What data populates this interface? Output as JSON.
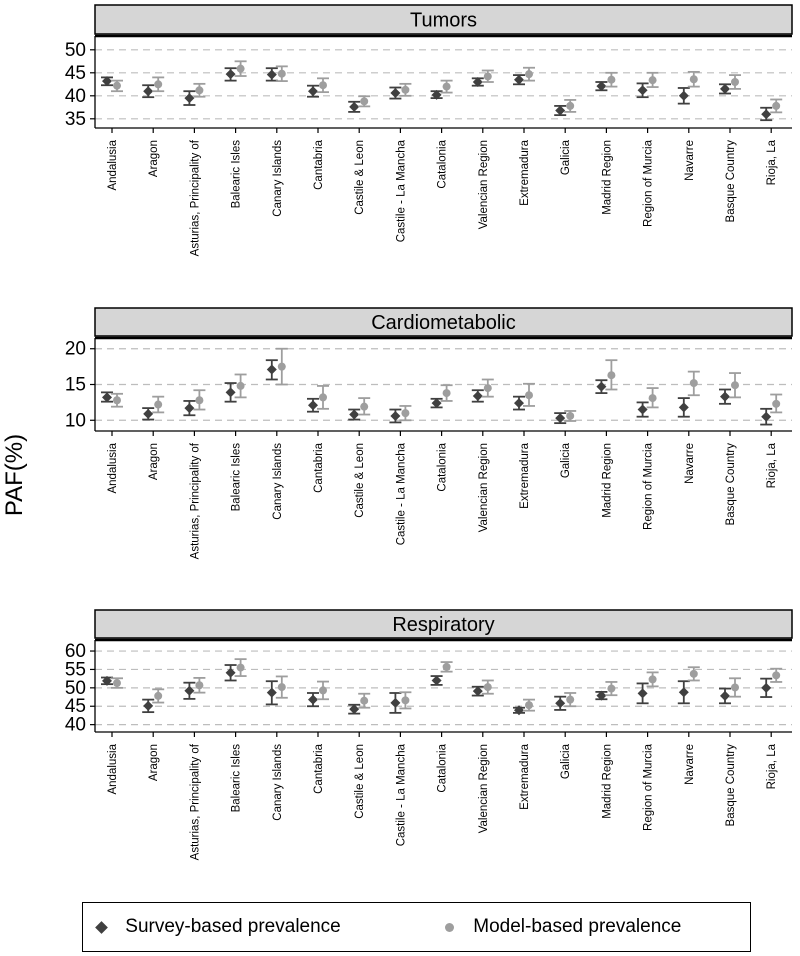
{
  "chart_data": {
    "type": "dot-with-error-bars",
    "ylabel": "PAF(%)",
    "categories": [
      "Andalusia",
      "Aragon",
      "Asturias, Principality of",
      "Balearic Isles",
      "Canary Islands",
      "Cantabria",
      "Castile & Leon",
      "Castile - La Mancha",
      "Catalonia",
      "Valencian Region",
      "Extremadura",
      "Galicia",
      "Madrid Region",
      "Region of Murcia",
      "Navarre",
      "Basque Country",
      "Rioja, La"
    ],
    "legend": [
      {
        "name": "Survey-based prevalence",
        "marker": "diamond",
        "color": "#404040"
      },
      {
        "name": "Model-based prevalence",
        "marker": "circle",
        "color": "#9e9e9e"
      }
    ],
    "panels": [
      {
        "title": "Tumors",
        "ylim": [
          33,
          53
        ],
        "yticks": [
          35,
          40,
          45,
          50
        ],
        "survey": {
          "values": [
            43.2,
            41.0,
            39.5,
            44.7,
            44.6,
            41.0,
            37.6,
            40.6,
            40.2,
            43.0,
            43.5,
            36.8,
            42.1,
            41.2,
            40.0,
            41.5,
            36.0
          ],
          "lower": [
            42.3,
            39.7,
            38.0,
            43.3,
            43.3,
            39.8,
            36.5,
            39.4,
            39.5,
            42.2,
            42.5,
            35.8,
            41.2,
            39.7,
            38.3,
            40.5,
            34.7
          ],
          "upper": [
            44.0,
            42.3,
            41.0,
            46.0,
            46.0,
            42.2,
            38.7,
            41.8,
            41.0,
            43.8,
            44.5,
            37.8,
            43.0,
            42.7,
            41.7,
            42.5,
            37.4
          ]
        },
        "model": {
          "values": [
            42.2,
            42.5,
            41.2,
            45.9,
            44.8,
            42.3,
            38.8,
            41.3,
            42.0,
            44.2,
            44.7,
            37.8,
            43.5,
            43.4,
            43.6,
            43.0,
            37.8
          ],
          "lower": [
            41.0,
            41.0,
            39.8,
            44.3,
            43.2,
            40.8,
            37.7,
            40.0,
            40.7,
            43.0,
            43.3,
            36.5,
            42.0,
            41.9,
            42.0,
            41.5,
            36.4
          ],
          "upper": [
            43.3,
            44.0,
            42.6,
            47.5,
            46.4,
            43.8,
            39.9,
            42.6,
            43.3,
            45.5,
            46.1,
            39.1,
            45.0,
            45.0,
            45.2,
            44.5,
            39.2
          ]
        }
      },
      {
        "title": "Cardiometabolic",
        "ylim": [
          8.5,
          21.5
        ],
        "yticks": [
          10,
          15,
          20
        ],
        "survey": {
          "values": [
            13.2,
            10.9,
            11.7,
            13.9,
            17.1,
            12.1,
            10.8,
            10.6,
            12.4,
            13.4,
            12.4,
            10.3,
            14.7,
            11.5,
            11.8,
            13.3,
            10.5
          ],
          "lower": [
            12.6,
            10.1,
            10.7,
            12.6,
            15.7,
            11.2,
            10.1,
            9.7,
            11.8,
            12.6,
            11.5,
            9.6,
            13.8,
            10.5,
            10.5,
            12.3,
            9.4
          ],
          "upper": [
            13.9,
            11.7,
            12.7,
            15.2,
            18.4,
            13.0,
            11.5,
            11.5,
            13.0,
            14.2,
            13.3,
            11.0,
            15.6,
            12.5,
            13.1,
            14.3,
            11.6
          ]
        },
        "model": {
          "values": [
            12.8,
            12.2,
            12.8,
            14.8,
            17.5,
            13.2,
            11.9,
            11.0,
            13.8,
            14.5,
            13.5,
            10.6,
            16.3,
            13.1,
            15.2,
            14.9,
            12.3
          ],
          "lower": [
            11.9,
            11.1,
            11.5,
            13.2,
            15.0,
            11.6,
            10.8,
            10.0,
            12.7,
            13.3,
            12.0,
            9.9,
            14.3,
            11.8,
            13.5,
            13.2,
            11.1
          ],
          "upper": [
            13.7,
            13.3,
            14.2,
            16.4,
            20.0,
            14.8,
            13.1,
            12.0,
            14.9,
            15.7,
            15.1,
            11.3,
            18.4,
            14.5,
            16.8,
            16.6,
            13.6
          ]
        }
      },
      {
        "title": "Respiratory",
        "ylim": [
          38,
          63
        ],
        "yticks": [
          40,
          45,
          50,
          55,
          60
        ],
        "survey": {
          "values": [
            51.9,
            45.1,
            49.2,
            54.1,
            48.7,
            46.8,
            44.2,
            45.9,
            52.0,
            49.1,
            43.9,
            45.8,
            47.9,
            48.5,
            48.8,
            47.8,
            50.0
          ],
          "lower": [
            51.0,
            43.4,
            47.0,
            52.0,
            45.5,
            45.0,
            43.0,
            43.2,
            50.8,
            47.9,
            43.2,
            44.0,
            46.9,
            45.8,
            45.8,
            45.8,
            47.5
          ],
          "upper": [
            52.8,
            46.8,
            51.4,
            56.2,
            51.8,
            48.6,
            45.4,
            48.6,
            53.2,
            50.3,
            44.6,
            47.6,
            48.9,
            51.2,
            51.8,
            49.8,
            52.5
          ]
        },
        "model": {
          "values": [
            51.3,
            47.8,
            50.7,
            55.5,
            50.2,
            49.3,
            46.5,
            46.6,
            55.7,
            50.2,
            45.3,
            46.8,
            49.8,
            52.3,
            53.8,
            50.1,
            53.4
          ],
          "lower": [
            50.0,
            46.0,
            48.7,
            53.2,
            47.3,
            46.9,
            44.6,
            44.4,
            54.4,
            48.4,
            43.8,
            45.0,
            48.0,
            50.4,
            52.0,
            47.6,
            51.6
          ],
          "upper": [
            52.6,
            49.6,
            52.7,
            57.8,
            53.1,
            51.7,
            48.4,
            48.8,
            57.0,
            52.0,
            46.8,
            48.6,
            51.6,
            54.2,
            55.6,
            52.6,
            55.2
          ]
        }
      }
    ]
  }
}
